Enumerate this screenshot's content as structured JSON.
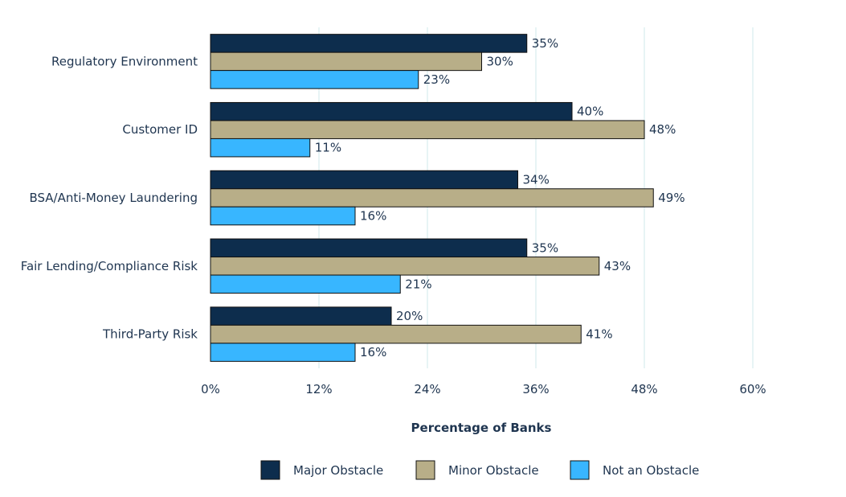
{
  "chart_data": {
    "type": "bar",
    "orientation": "horizontal",
    "categories": [
      "Regulatory Environment",
      "Customer ID",
      "BSA/Anti-Money Laundering",
      "Fair Lending/Compliance Risk",
      "Third-Party Risk"
    ],
    "series": [
      {
        "name": "Major Obstacle",
        "color": "#0d2d4d",
        "values": [
          35,
          40,
          34,
          35,
          20
        ]
      },
      {
        "name": "Minor Obstacle",
        "color": "#b8ae88",
        "values": [
          30,
          48,
          49,
          43,
          41
        ]
      },
      {
        "name": "Not an Obstacle",
        "color": "#38b6ff",
        "values": [
          23,
          11,
          16,
          21,
          16
        ]
      }
    ],
    "value_suffix": "%",
    "xlim": [
      0,
      60
    ],
    "xticks": [
      0,
      12,
      24,
      36,
      48,
      60
    ],
    "xtick_labels": [
      "0%",
      "12%",
      "24%",
      "36%",
      "48%",
      "60%"
    ],
    "xlabel": "Percentage of Banks",
    "ylabel": "",
    "grid": true,
    "legend_position": "bottom-center",
    "gridline_color": "#dff0f2",
    "text_color": "#1f3550"
  }
}
